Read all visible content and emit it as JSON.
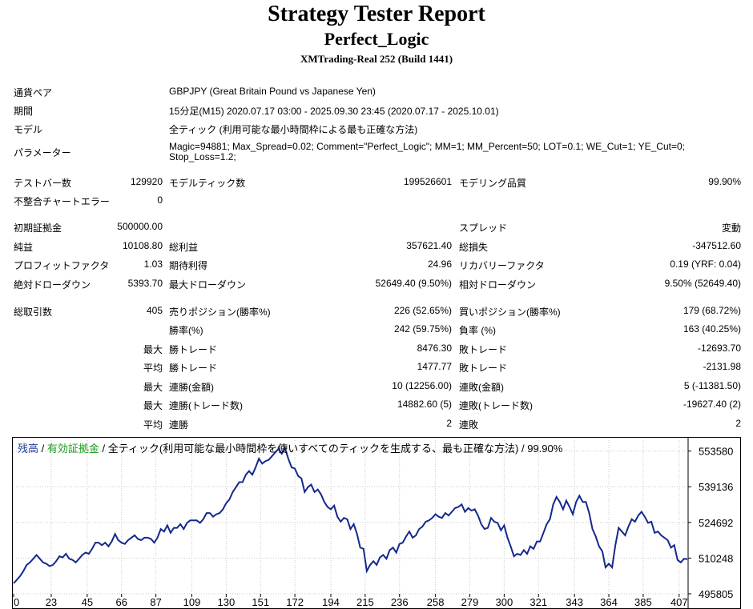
{
  "header": {
    "title": "Strategy Tester Report",
    "subtitle": "Perfect_Logic",
    "broker": "XMTrading-Real 252 (Build 1441)"
  },
  "settings": {
    "symbol_label": "通貨ペア",
    "symbol_value": "GBPJPY (Great Britain Pound vs Japanese Yen)",
    "period_label": "期間",
    "period_value": "15分足(M15) 2020.07.17 03:00 - 2025.09.30 23:45 (2020.07.17 - 2025.10.01)",
    "model_label": "モデル",
    "model_value": "全ティック (利用可能な最小時間枠による最も正確な方法)",
    "params_label": "パラメーター",
    "params_line1": "Magic=94881; Max_Spread=0.02; Comment=\"Perfect_Logic\"; MM=1; MM_Percent=50; LOT=0.1; WE_Cut=1; YE_Cut=0;",
    "params_line2": "Stop_Loss=1.2;"
  },
  "test": {
    "bars_label": "テストバー数",
    "bars_value": "129920",
    "ticks_label": "モデルティック数",
    "ticks_value": "199526601",
    "quality_label": "モデリング品質",
    "quality_value": "99.90%",
    "errors_label": "不整合チャートエラー",
    "errors_value": "0"
  },
  "results": {
    "deposit_label": "初期証拠金",
    "deposit_value": "500000.00",
    "spread_label": "スプレッド",
    "spread_value": "変動",
    "net_label": "純益",
    "net_value": "10108.80",
    "gross_profit_label": "総利益",
    "gross_profit_value": "357621.40",
    "gross_loss_label": "総損失",
    "gross_loss_value": "-347512.60",
    "pf_label": "プロフィットファクタ",
    "pf_value": "1.03",
    "expected_label": "期待利得",
    "expected_value": "24.96",
    "recovery_label": "リカバリーファクタ",
    "recovery_value": "0.19 (YRF: 0.04)",
    "abs_dd_label": "絶対ドローダウン",
    "abs_dd_value": "5393.70",
    "max_dd_label": "最大ドローダウン",
    "max_dd_value": "52649.40 (9.50%)",
    "rel_dd_label": "相対ドローダウン",
    "rel_dd_value": "9.50% (52649.40)"
  },
  "trades": {
    "total_label": "総取引数",
    "total_value": "405",
    "short_label": "売りポジション(勝率%)",
    "short_value": "226 (52.65%)",
    "long_label": "買いポジション(勝率%)",
    "long_value": "179 (68.72%)",
    "winrate_label": "勝率(%)",
    "winrate_value": "242 (59.75%)",
    "lossrate_label": "負率 (%)",
    "lossrate_value": "163 (40.25%)",
    "max_label": "最大",
    "avg_label": "平均",
    "win_trade_label": "勝トレード",
    "loss_trade_label": "敗トレード",
    "max_win_value": "8476.30",
    "max_loss_value": "-12693.70",
    "avg_win_value": "1477.77",
    "avg_loss_value": "-2131.98",
    "consec_wins_amt_label": "連勝(金額)",
    "consec_wins_amt_value": "10 (12256.00)",
    "consec_loss_amt_label": "連敗(金額)",
    "consec_loss_amt_value": "5 (-11381.50)",
    "consec_wins_trd_label": "連勝(トレード数)",
    "consec_wins_trd_value": "14882.60 (5)",
    "consec_loss_trd_label": "連敗(トレード数)",
    "consec_loss_trd_value": "-19627.40 (2)",
    "avg_wins_label": "連勝",
    "avg_wins_value": "2",
    "avg_losses_label": "連敗",
    "avg_losses_value": "2"
  },
  "chart_legend": {
    "balance": "残高",
    "sep1": " / ",
    "equity": "有効証拠金",
    "rest": " / 全ティック(利用可能な最小時間枠を使いすべてのティックを生成する、最も正確な方法) / 99.90%"
  },
  "chart_data": {
    "type": "line",
    "xlabel": "",
    "ylabel": "",
    "x_ticks": [
      0,
      23,
      45,
      66,
      87,
      109,
      130,
      151,
      172,
      194,
      215,
      236,
      258,
      279,
      300,
      321,
      343,
      364,
      385,
      407
    ],
    "y_ticks": [
      495805,
      510248,
      524692,
      539136,
      553580
    ],
    "xlim": [
      0,
      412
    ],
    "ylim": [
      495805,
      558000
    ],
    "line_color": "#14288c",
    "grid": true,
    "series": [
      {
        "values": [
          [
            0,
            500000
          ],
          [
            2,
            501500
          ],
          [
            4,
            503000
          ],
          [
            6,
            505000
          ],
          [
            8,
            507500
          ],
          [
            10,
            508500
          ],
          [
            12,
            510000
          ],
          [
            14,
            511500
          ],
          [
            16,
            510000
          ],
          [
            18,
            508500
          ],
          [
            20,
            508000
          ],
          [
            22,
            507000
          ],
          [
            24,
            507500
          ],
          [
            26,
            509000
          ],
          [
            28,
            511000
          ],
          [
            30,
            510500
          ],
          [
            32,
            512000
          ],
          [
            34,
            510000
          ],
          [
            36,
            509500
          ],
          [
            38,
            508500
          ],
          [
            40,
            510000
          ],
          [
            42,
            511500
          ],
          [
            44,
            512500
          ],
          [
            46,
            512000
          ],
          [
            48,
            514000
          ],
          [
            50,
            516500
          ],
          [
            52,
            516500
          ],
          [
            54,
            515500
          ],
          [
            56,
            516500
          ],
          [
            58,
            515000
          ],
          [
            60,
            517000
          ],
          [
            62,
            520000
          ],
          [
            64,
            517500
          ],
          [
            66,
            516500
          ],
          [
            68,
            516000
          ],
          [
            70,
            517500
          ],
          [
            72,
            518500
          ],
          [
            74,
            519500
          ],
          [
            76,
            518000
          ],
          [
            78,
            517500
          ],
          [
            80,
            518500
          ],
          [
            82,
            518500
          ],
          [
            84,
            518000
          ],
          [
            86,
            516500
          ],
          [
            88,
            518500
          ],
          [
            90,
            522000
          ],
          [
            92,
            521000
          ],
          [
            94,
            523500
          ],
          [
            96,
            520500
          ],
          [
            98,
            522500
          ],
          [
            100,
            522500
          ],
          [
            102,
            524000
          ],
          [
            104,
            522000
          ],
          [
            106,
            524500
          ],
          [
            108,
            525500
          ],
          [
            110,
            525500
          ],
          [
            112,
            525500
          ],
          [
            114,
            524500
          ],
          [
            116,
            526000
          ],
          [
            118,
            528500
          ],
          [
            120,
            528500
          ],
          [
            122,
            527000
          ],
          [
            124,
            528000
          ],
          [
            126,
            528500
          ],
          [
            128,
            530000
          ],
          [
            130,
            532500
          ],
          [
            132,
            534000
          ],
          [
            134,
            537000
          ],
          [
            136,
            539000
          ],
          [
            138,
            541000
          ],
          [
            140,
            541000
          ],
          [
            142,
            544000
          ],
          [
            144,
            545500
          ],
          [
            146,
            544000
          ],
          [
            148,
            547000
          ],
          [
            150,
            550500
          ],
          [
            152,
            548500
          ],
          [
            154,
            549500
          ],
          [
            156,
            550000
          ],
          [
            158,
            551500
          ],
          [
            160,
            553000
          ],
          [
            162,
            554500
          ],
          [
            164,
            552500
          ],
          [
            166,
            554800
          ],
          [
            168,
            550500
          ],
          [
            170,
            547000
          ],
          [
            172,
            546500
          ],
          [
            174,
            543500
          ],
          [
            176,
            542500
          ],
          [
            178,
            537000
          ],
          [
            180,
            539000
          ],
          [
            182,
            540000
          ],
          [
            184,
            537000
          ],
          [
            186,
            538000
          ],
          [
            188,
            536000
          ],
          [
            190,
            533000
          ],
          [
            192,
            531000
          ],
          [
            194,
            530000
          ],
          [
            196,
            531500
          ],
          [
            198,
            527000
          ],
          [
            200,
            525000
          ],
          [
            202,
            526500
          ],
          [
            204,
            526000
          ],
          [
            206,
            522000
          ],
          [
            208,
            524000
          ],
          [
            210,
            520000
          ],
          [
            212,
            514500
          ],
          [
            214,
            514000
          ],
          [
            216,
            505000
          ],
          [
            218,
            507500
          ],
          [
            220,
            509000
          ],
          [
            222,
            507500
          ],
          [
            224,
            510500
          ],
          [
            226,
            511500
          ],
          [
            228,
            510000
          ],
          [
            230,
            513500
          ],
          [
            232,
            514500
          ],
          [
            234,
            512500
          ],
          [
            236,
            516000
          ],
          [
            238,
            516500
          ],
          [
            240,
            519000
          ],
          [
            242,
            521000
          ],
          [
            244,
            518500
          ],
          [
            246,
            519500
          ],
          [
            248,
            522000
          ],
          [
            250,
            523000
          ],
          [
            252,
            525000
          ],
          [
            254,
            525500
          ],
          [
            256,
            526500
          ],
          [
            258,
            528000
          ],
          [
            260,
            527000
          ],
          [
            262,
            526500
          ],
          [
            264,
            528500
          ],
          [
            266,
            527500
          ],
          [
            268,
            529000
          ],
          [
            270,
            530500
          ],
          [
            272,
            531000
          ],
          [
            274,
            532000
          ],
          [
            276,
            529000
          ],
          [
            278,
            530500
          ],
          [
            280,
            529500
          ],
          [
            282,
            530000
          ],
          [
            284,
            527500
          ],
          [
            286,
            524000
          ],
          [
            288,
            522000
          ],
          [
            290,
            522500
          ],
          [
            292,
            526500
          ],
          [
            294,
            525000
          ],
          [
            296,
            524500
          ],
          [
            298,
            521500
          ],
          [
            300,
            523500
          ],
          [
            302,
            518500
          ],
          [
            304,
            515000
          ],
          [
            306,
            511000
          ],
          [
            308,
            512000
          ],
          [
            310,
            511500
          ],
          [
            312,
            513500
          ],
          [
            314,
            512000
          ],
          [
            316,
            515000
          ],
          [
            318,
            514000
          ],
          [
            320,
            517000
          ],
          [
            322,
            517000
          ],
          [
            324,
            520500
          ],
          [
            326,
            524000
          ],
          [
            328,
            526000
          ],
          [
            330,
            532000
          ],
          [
            332,
            535000
          ],
          [
            334,
            533000
          ],
          [
            336,
            530000
          ],
          [
            338,
            533500
          ],
          [
            340,
            531000
          ],
          [
            342,
            528000
          ],
          [
            344,
            533000
          ],
          [
            346,
            535500
          ],
          [
            348,
            533000
          ],
          [
            350,
            533000
          ],
          [
            352,
            528500
          ],
          [
            354,
            522000
          ],
          [
            356,
            519000
          ],
          [
            358,
            515000
          ],
          [
            360,
            513000
          ],
          [
            362,
            506500
          ],
          [
            364,
            508000
          ],
          [
            366,
            506500
          ],
          [
            368,
            515500
          ],
          [
            370,
            522500
          ],
          [
            372,
            521000
          ],
          [
            374,
            519500
          ],
          [
            376,
            523000
          ],
          [
            378,
            526000
          ],
          [
            380,
            525000
          ],
          [
            382,
            527500
          ],
          [
            384,
            529000
          ],
          [
            386,
            527000
          ],
          [
            388,
            524500
          ],
          [
            390,
            525000
          ],
          [
            392,
            520500
          ],
          [
            394,
            521000
          ],
          [
            396,
            519500
          ],
          [
            398,
            518500
          ],
          [
            400,
            517500
          ],
          [
            402,
            514500
          ],
          [
            404,
            515500
          ],
          [
            406,
            509500
          ],
          [
            408,
            508500
          ],
          [
            410,
            510000
          ],
          [
            412,
            509800
          ]
        ]
      }
    ]
  }
}
